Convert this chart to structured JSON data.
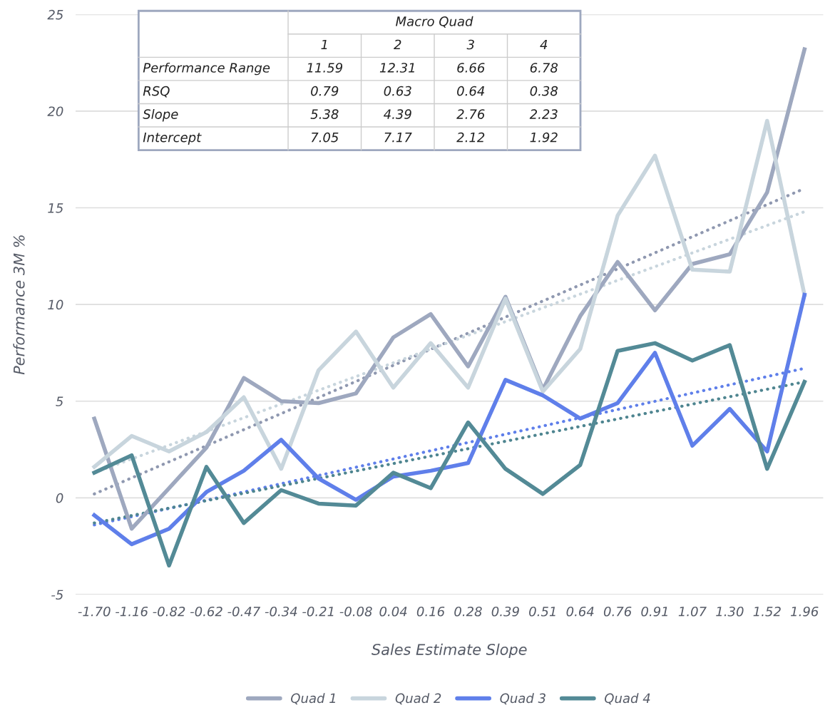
{
  "chart_data": {
    "type": "line",
    "xlabel": "Sales Estimate Slope",
    "ylabel": "Performance 3M %",
    "categories": [
      "-1.70",
      "-1.16",
      "-0.82",
      "-0.62",
      "-0.47",
      "-0.34",
      "-0.21",
      "-0.08",
      "0.04",
      "0.16",
      "0.28",
      "0.39",
      "0.51",
      "0.64",
      "0.76",
      "0.91",
      "1.07",
      "1.30",
      "1.52",
      "1.96"
    ],
    "series": [
      {
        "name": "Quad 1",
        "color": "#9ea8bf",
        "values": [
          4.1,
          -1.6,
          0.5,
          2.6,
          6.2,
          5.0,
          4.9,
          5.4,
          8.3,
          9.5,
          6.8,
          10.4,
          5.6,
          9.4,
          12.2,
          9.7,
          12.1,
          12.6,
          15.8,
          23.2
        ]
      },
      {
        "name": "Quad 2",
        "color": "#c8d5dd",
        "values": [
          1.6,
          3.2,
          2.4,
          3.4,
          5.2,
          1.5,
          6.6,
          8.6,
          5.7,
          8.0,
          5.7,
          10.3,
          5.5,
          7.7,
          14.6,
          17.7,
          11.8,
          11.7,
          19.5,
          10.5
        ]
      },
      {
        "name": "Quad 3",
        "color": "#5f7fea",
        "values": [
          -0.9,
          -2.4,
          -1.6,
          0.3,
          1.4,
          3.0,
          1.0,
          -0.1,
          1.1,
          1.4,
          1.8,
          6.1,
          5.3,
          4.1,
          4.9,
          7.5,
          2.7,
          4.6,
          2.4,
          10.5
        ]
      },
      {
        "name": "Quad 4",
        "color": "#538a96",
        "values": [
          1.3,
          2.2,
          -3.5,
          1.6,
          -1.3,
          0.4,
          -0.3,
          -0.4,
          1.3,
          0.5,
          3.9,
          1.5,
          0.2,
          1.7,
          7.6,
          8.0,
          7.1,
          7.9,
          1.5,
          6.0
        ]
      },
      {
        "color": "#8f98b0",
        "x": [
          "-1.70",
          "1.96"
        ],
        "values": [
          0.2,
          16.0
        ],
        "line_style": "dotted"
      },
      {
        "color": "#c8d5dd",
        "x": [
          "-1.70",
          "1.96"
        ],
        "values": [
          1.3,
          14.8
        ],
        "line_style": "dotted"
      },
      {
        "color": "#5f7fea",
        "x": [
          "-1.70",
          "1.96"
        ],
        "values": [
          -1.4,
          6.7
        ],
        "line_style": "dotted"
      },
      {
        "color": "#4e8590",
        "x": [
          "-1.70",
          "1.96"
        ],
        "values": [
          -1.3,
          6.0
        ],
        "line_style": "dotted"
      }
    ],
    "ylim": [
      -5,
      25
    ],
    "yticks": [
      -5,
      0,
      5,
      10,
      15,
      20,
      25
    ],
    "grid": "y",
    "legend": "bottom",
    "line_style": "solid",
    "marker": "none",
    "annotations": [
      "Macro Quad",
      "1",
      "2",
      "3",
      "4",
      "Performance Range",
      "11.59",
      "12.31",
      "6.66",
      "6.78",
      "RSQ",
      "0.79",
      "0.63",
      "0.64",
      "0.38",
      "Slope",
      "5.38",
      "4.39",
      "2.76",
      "2.23",
      "Intercept",
      "7.05",
      "7.17",
      "2.12",
      "1.92"
    ]
  }
}
